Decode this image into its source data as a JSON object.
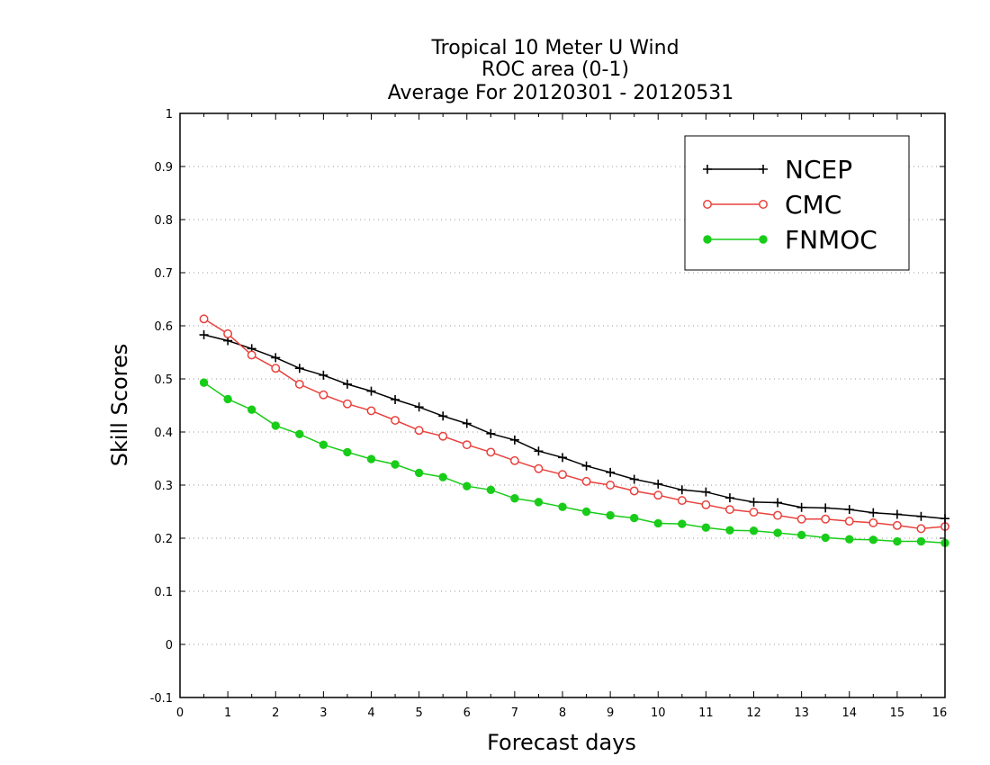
{
  "chart_data": {
    "type": "line",
    "title": [
      "Tropical 10 Meter U Wind",
      "ROC area (0-1)",
      "Average For 20120301 - 20120531"
    ],
    "xlabel": "Forecast days",
    "ylabel": "Skill Scores",
    "xlim": [
      0,
      16
    ],
    "ylim": [
      -0.1,
      1
    ],
    "xticks": [
      "0",
      "1",
      "2",
      "3",
      "4",
      "5",
      "6",
      "7",
      "8",
      "9",
      "10",
      "11",
      "12",
      "13",
      "14",
      "15",
      "16"
    ],
    "yticks": [
      "-0.1",
      "0",
      "0.1",
      "0.2",
      "0.3",
      "0.4",
      "0.5",
      "0.6",
      "0.7",
      "0.8",
      "0.9",
      "1"
    ],
    "grid": true,
    "legend_position": "top-right",
    "x": [
      0.5,
      1,
      1.5,
      2,
      2.5,
      3,
      3.5,
      4,
      4.5,
      5,
      5.5,
      6,
      6.5,
      7,
      7.5,
      8,
      8.5,
      9,
      9.5,
      10,
      10.5,
      11,
      11.5,
      12,
      12.5,
      13,
      13.5,
      14,
      14.5,
      15,
      15.5,
      16
    ],
    "series": [
      {
        "name": "NCEP",
        "color": "#000000",
        "marker": "plus",
        "values": [
          0.583,
          0.572,
          0.557,
          0.54,
          0.52,
          0.507,
          0.49,
          0.477,
          0.461,
          0.447,
          0.43,
          0.416,
          0.397,
          0.385,
          0.364,
          0.352,
          0.336,
          0.324,
          0.311,
          0.302,
          0.291,
          0.287,
          0.276,
          0.268,
          0.267,
          0.258,
          0.257,
          0.254,
          0.248,
          0.245,
          0.241,
          0.237
        ]
      },
      {
        "name": "CMC",
        "color": "#e8413d",
        "marker": "open-circle",
        "values": [
          0.613,
          0.585,
          0.545,
          0.52,
          0.49,
          0.47,
          0.453,
          0.44,
          0.422,
          0.403,
          0.392,
          0.376,
          0.362,
          0.346,
          0.331,
          0.32,
          0.307,
          0.3,
          0.289,
          0.281,
          0.271,
          0.263,
          0.254,
          0.249,
          0.243,
          0.236,
          0.236,
          0.232,
          0.229,
          0.224,
          0.218,
          0.222
        ]
      },
      {
        "name": "FNMOC",
        "color": "#19cc19",
        "marker": "filled-circle",
        "values": [
          0.493,
          0.462,
          0.442,
          0.412,
          0.396,
          0.376,
          0.362,
          0.349,
          0.339,
          0.323,
          0.315,
          0.298,
          0.291,
          0.275,
          0.268,
          0.259,
          0.25,
          0.243,
          0.238,
          0.228,
          0.227,
          0.22,
          0.215,
          0.214,
          0.21,
          0.206,
          0.201,
          0.198,
          0.197,
          0.194,
          0.194,
          0.191
        ]
      }
    ]
  }
}
